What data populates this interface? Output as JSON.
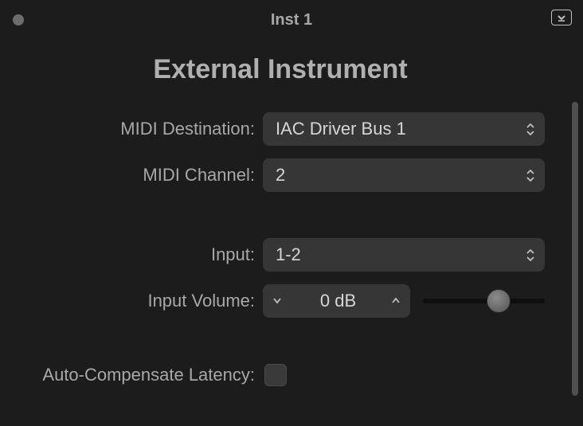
{
  "window": {
    "title": "Inst 1"
  },
  "panel": {
    "heading": "External Instrument",
    "midi_destination": {
      "label": "MIDI Destination:",
      "value": "IAC Driver Bus 1"
    },
    "midi_channel": {
      "label": "MIDI Channel:",
      "value": "2"
    },
    "input": {
      "label": "Input:",
      "value": "1-2"
    },
    "input_volume": {
      "label": "Input Volume:",
      "value": "0  dB",
      "slider_pos_pct": 62
    },
    "auto_compensate": {
      "label": "Auto-Compensate Latency:",
      "checked": false
    }
  },
  "colors": {
    "bg": "#1c1c1c",
    "control_bg": "#363636",
    "text": "#b8b8b8",
    "text_light": "#d6d6d6",
    "arrow": "#bfbfbf"
  }
}
